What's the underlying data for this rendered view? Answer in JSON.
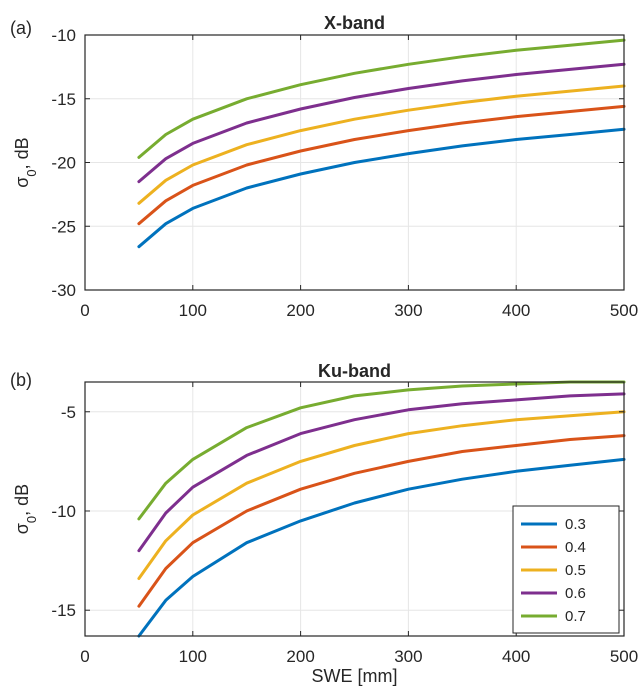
{
  "chart_data": [
    {
      "type": "line",
      "panel_tag": "(a)",
      "title": "X-band",
      "xlabel": "",
      "ylabel": "σ0, dB",
      "xlim": [
        0,
        500
      ],
      "ylim": [
        -30,
        -10
      ],
      "xticks": [
        0,
        100,
        200,
        300,
        400,
        500
      ],
      "yticks": [
        -30,
        -25,
        -20,
        -15,
        -10
      ],
      "grid": true,
      "x": [
        50,
        75,
        100,
        150,
        200,
        250,
        300,
        350,
        400,
        450,
        500
      ],
      "series": [
        {
          "name": "0.3",
          "color": "#0072BD",
          "values": [
            -26.6,
            -24.8,
            -23.6,
            -22.0,
            -20.9,
            -20.0,
            -19.3,
            -18.7,
            -18.2,
            -17.8,
            -17.4
          ]
        },
        {
          "name": "0.4",
          "color": "#D95319",
          "values": [
            -24.8,
            -23.0,
            -21.8,
            -20.2,
            -19.1,
            -18.2,
            -17.5,
            -16.9,
            -16.4,
            -16.0,
            -15.6
          ]
        },
        {
          "name": "0.5",
          "color": "#EDB120",
          "values": [
            -23.2,
            -21.4,
            -20.2,
            -18.6,
            -17.5,
            -16.6,
            -15.9,
            -15.3,
            -14.8,
            -14.4,
            -14.0
          ]
        },
        {
          "name": "0.6",
          "color": "#7E2F8E",
          "values": [
            -21.5,
            -19.7,
            -18.5,
            -16.9,
            -15.8,
            -14.9,
            -14.2,
            -13.6,
            -13.1,
            -12.7,
            -12.3
          ]
        },
        {
          "name": "0.7",
          "color": "#77AC30",
          "values": [
            -19.6,
            -17.8,
            -16.6,
            -15.0,
            -13.9,
            -13.0,
            -12.3,
            -11.7,
            -11.2,
            -10.8,
            -10.4
          ]
        }
      ]
    },
    {
      "type": "line",
      "panel_tag": "(b)",
      "title": "Ku-band",
      "xlabel": "SWE [mm]",
      "ylabel": "σ0, dB",
      "xlim": [
        0,
        500
      ],
      "ylim": [
        -16.3,
        -3.5
      ],
      "xticks": [
        0,
        100,
        200,
        300,
        400,
        500
      ],
      "yticks": [
        -15,
        -10,
        -5
      ],
      "grid": true,
      "legend_position": "bottom-right",
      "x": [
        50,
        75,
        100,
        150,
        200,
        250,
        300,
        350,
        400,
        450,
        500
      ],
      "series": [
        {
          "name": "0.3",
          "color": "#0072BD",
          "values": [
            -16.3,
            -14.5,
            -13.3,
            -11.6,
            -10.5,
            -9.6,
            -8.9,
            -8.4,
            -8.0,
            -7.7,
            -7.4
          ]
        },
        {
          "name": "0.4",
          "color": "#D95319",
          "values": [
            -14.8,
            -12.9,
            -11.6,
            -10.0,
            -8.9,
            -8.1,
            -7.5,
            -7.0,
            -6.7,
            -6.4,
            -6.2
          ]
        },
        {
          "name": "0.5",
          "color": "#EDB120",
          "values": [
            -13.4,
            -11.5,
            -10.2,
            -8.6,
            -7.5,
            -6.7,
            -6.1,
            -5.7,
            -5.4,
            -5.2,
            -5.0
          ]
        },
        {
          "name": "0.6",
          "color": "#7E2F8E",
          "values": [
            -12.0,
            -10.1,
            -8.8,
            -7.2,
            -6.1,
            -5.4,
            -4.9,
            -4.6,
            -4.4,
            -4.2,
            -4.1
          ]
        },
        {
          "name": "0.7",
          "color": "#77AC30",
          "values": [
            -10.4,
            -8.6,
            -7.4,
            -5.8,
            -4.8,
            -4.2,
            -3.9,
            -3.7,
            -3.6,
            -3.5,
            -3.5
          ]
        }
      ]
    }
  ]
}
